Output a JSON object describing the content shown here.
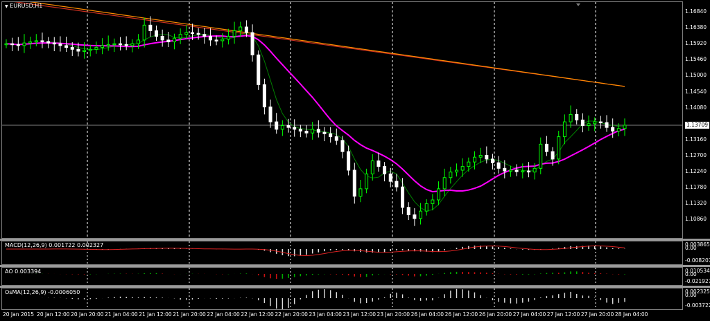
{
  "main": {
    "title_symbol": "EURUSD,H1",
    "current_price_label": "1.13709",
    "price_ticks": [
      "1.16840",
      "1.16380",
      "1.15920",
      "1.15460",
      "1.15000",
      "1.14540",
      "1.14080",
      "1.13620",
      "1.13160",
      "1.12700",
      "1.12240",
      "1.11780",
      "1.11320",
      "1.10860"
    ],
    "colors": {
      "bull": "#00ff00",
      "bear": "#ffffff",
      "ma_magenta": "#ff00ff",
      "ma_green": "#008000",
      "ma_orange": "#ff8c00",
      "ma_red": "#cc3020",
      "grid": "#ffffff",
      "bid": "#7f7f7f"
    }
  },
  "macd": {
    "title": "MACD(12,26,9) 0.001722 0.002327",
    "ticks": [
      "0.003865",
      "0.00",
      "-0.008207"
    ]
  },
  "ao": {
    "title": "AO 0.003394",
    "ticks": [
      "0.010534",
      "0.00",
      "-0.021927"
    ]
  },
  "osma": {
    "title": "OsMA(12,26,9) -0.0006050",
    "ticks": [
      "0.002325",
      "0.00",
      "-0.003722"
    ]
  },
  "time_axis": [
    "20 Jan 2015",
    "20 Jan 12:00",
    "20 Jan 20:00",
    "21 Jan 04:00",
    "21 Jan 12:00",
    "21 Jan 20:00",
    "22 Jan 04:00",
    "22 Jan 12:00",
    "22 Jan 20:00",
    "23 Jan 04:00",
    "23 Jan 12:00",
    "23 Jan 20:00",
    "26 Jan 04:00",
    "26 Jan 12:00",
    "26 Jan 20:00",
    "27 Jan 04:00",
    "27 Jan 12:00",
    "27 Jan 20:00",
    "28 Jan 04:00"
  ],
  "chart_data": {
    "type": "candlestick",
    "symbol": "EURUSD",
    "timeframe": "H1",
    "ylim": [
      1.1064,
      1.1702
    ],
    "close_series": [
      1.159,
      1.1588,
      1.1585,
      1.1592,
      1.1595,
      1.1598,
      1.1596,
      1.1592,
      1.159,
      1.1585,
      1.158,
      1.1575,
      1.157,
      1.1572,
      1.1575,
      1.158,
      1.1585,
      1.1588,
      1.159,
      1.1588,
      1.1585,
      1.159,
      1.16,
      1.164,
      1.1625,
      1.161,
      1.16,
      1.1595,
      1.1605,
      1.1615,
      1.162,
      1.1618,
      1.1615,
      1.161,
      1.16,
      1.1598,
      1.1602,
      1.161,
      1.1625,
      1.1635,
      1.162,
      1.156,
      1.148,
      1.142,
      1.138,
      1.136,
      1.137,
      1.1365,
      1.136,
      1.1355,
      1.135,
      1.136,
      1.1352,
      1.1348,
      1.134,
      1.133,
      1.13,
      1.125,
      1.118,
      1.12,
      1.124,
      1.1275,
      1.126,
      1.124,
      1.122,
      1.1205,
      1.115,
      1.113,
      1.112,
      1.114,
      1.116,
      1.117,
      1.12,
      1.123,
      1.1245,
      1.125,
      1.126,
      1.1272,
      1.1285,
      1.129,
      1.128,
      1.127,
      1.1255,
      1.1248,
      1.125,
      1.1246,
      1.1248,
      1.1245,
      1.1255,
      1.132,
      1.13,
      1.128,
      1.134,
      1.138,
      1.14,
      1.1385,
      1.137,
      1.1375,
      1.138,
      1.1378,
      1.1365,
      1.1355,
      1.1362,
      1.1371
    ],
    "indicators": [
      "MACD(12,26,9)",
      "AO",
      "OsMA(12,26,9)"
    ]
  }
}
